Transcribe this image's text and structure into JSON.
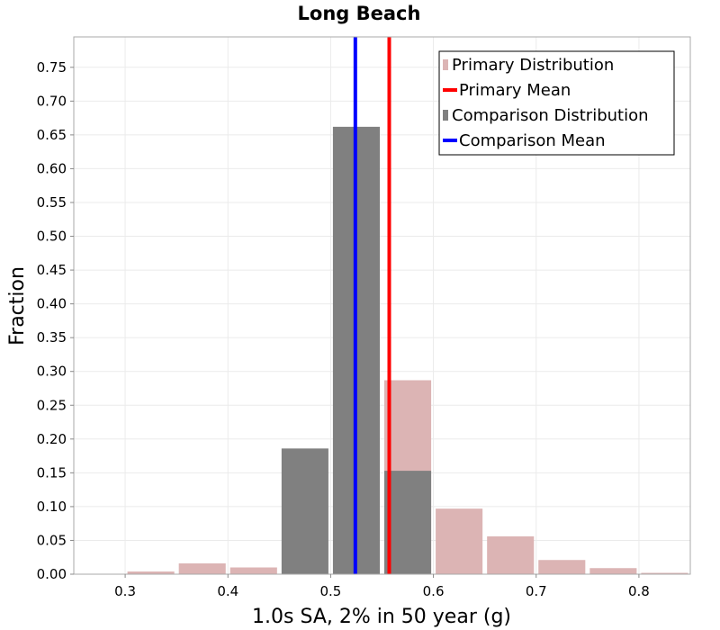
{
  "chart_data": {
    "type": "bar",
    "title": "Long Beach",
    "xlabel": "1.0s SA, 2% in 50 year (g)",
    "ylabel": "Fraction",
    "xlim": [
      0.25,
      0.85
    ],
    "ylim": [
      0.0,
      0.795
    ],
    "bin_width": 0.05,
    "x_ticks": [
      "0.3",
      "0.4",
      "0.5",
      "0.6",
      "0.7",
      "0.8"
    ],
    "x_tick_values": [
      0.3,
      0.4,
      0.5,
      0.6,
      0.7,
      0.8
    ],
    "y_ticks": [
      "0.00",
      "0.05",
      "0.10",
      "0.15",
      "0.20",
      "0.25",
      "0.30",
      "0.35",
      "0.40",
      "0.45",
      "0.50",
      "0.55",
      "0.60",
      "0.65",
      "0.70",
      "0.75"
    ],
    "y_tick_values": [
      0.0,
      0.05,
      0.1,
      0.15,
      0.2,
      0.25,
      0.3,
      0.35,
      0.4,
      0.45,
      0.5,
      0.55,
      0.6,
      0.65,
      0.7,
      0.75
    ],
    "grid": true,
    "legend_position": "top-right",
    "legend": [
      {
        "label": "Primary Distribution",
        "kind": "bar",
        "color": "#dcb4b4"
      },
      {
        "label": "Primary Mean",
        "kind": "line",
        "color": "#ff0000"
      },
      {
        "label": "Comparison Distribution",
        "kind": "bar",
        "color": "#808080"
      },
      {
        "label": "Comparison Mean",
        "kind": "line",
        "color": "#0000ff"
      }
    ],
    "series": [
      {
        "name": "Primary Distribution",
        "color": "#dcb4b4",
        "bins": [
          0.325,
          0.375,
          0.425,
          0.475,
          0.525,
          0.575,
          0.625,
          0.675,
          0.725,
          0.775,
          0.825
        ],
        "values": [
          0.004,
          0.016,
          0.01,
          0.0,
          0.0,
          0.287,
          0.097,
          0.056,
          0.021,
          0.009,
          0.002
        ]
      },
      {
        "name": "Comparison Distribution",
        "color": "#808080",
        "bins": [
          0.475,
          0.525,
          0.575
        ],
        "values": [
          0.186,
          0.662,
          0.153
        ]
      }
    ],
    "means": [
      {
        "name": "Primary Mean",
        "value": 0.557,
        "color": "#ff0000"
      },
      {
        "name": "Comparison Mean",
        "value": 0.524,
        "color": "#0000ff"
      }
    ]
  }
}
